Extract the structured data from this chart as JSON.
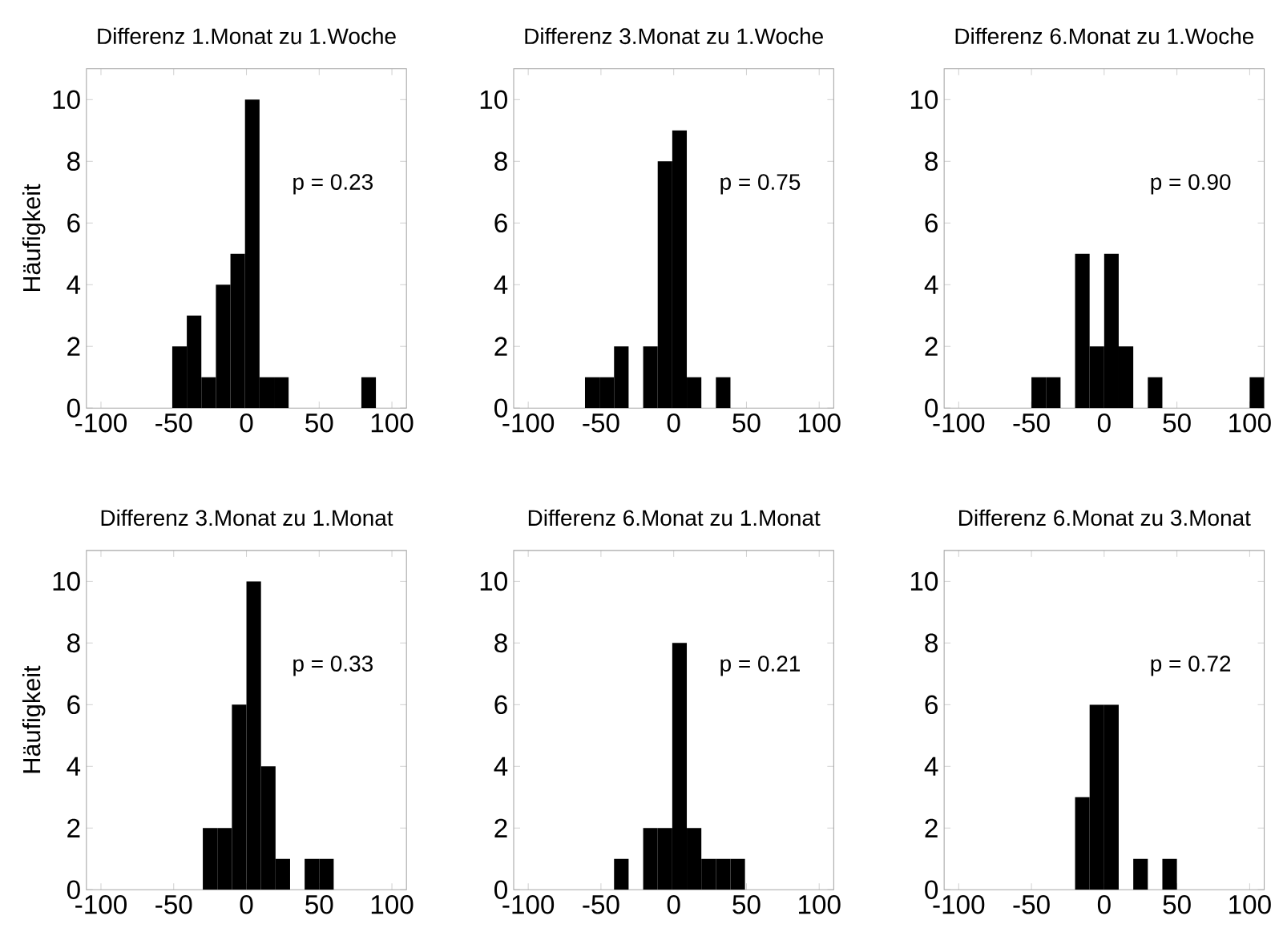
{
  "chart_data": [
    {
      "type": "histogram",
      "title": "Differenz 1.Monat zu 1.Woche",
      "ylabel": "Häufigkeit",
      "bins": [
        -51,
        -41,
        -31,
        -21,
        -11,
        -1,
        9,
        19,
        29,
        39,
        49,
        59,
        69,
        79,
        89
      ],
      "values": [
        2,
        3,
        1,
        4,
        5,
        10,
        1,
        1,
        0,
        0,
        0,
        0,
        0,
        1
      ],
      "color": "#000000",
      "xlim": [
        -110,
        110
      ],
      "ylim": [
        0,
        11
      ],
      "xticks": [
        -100,
        -50,
        0,
        50,
        100
      ],
      "yticks": [
        0,
        2,
        4,
        6,
        8,
        10
      ],
      "annotations": [
        "p = 0.23"
      ]
    },
    {
      "type": "histogram",
      "title": "Differenz 3.Monat zu 1.Woche",
      "bins": [
        -61,
        -51,
        -41,
        -31,
        -21,
        -11,
        -1,
        9,
        19,
        29,
        39
      ],
      "values": [
        1,
        1,
        2,
        0,
        2,
        8,
        9,
        1,
        0,
        1
      ],
      "color": "#000000",
      "xlim": [
        -110,
        110
      ],
      "ylim": [
        0,
        11
      ],
      "xticks": [
        -100,
        -50,
        0,
        50,
        100
      ],
      "yticks": [
        0,
        2,
        4,
        6,
        8,
        10
      ],
      "annotations": [
        "p = 0.75"
      ]
    },
    {
      "type": "histogram",
      "title": "Differenz 6.Monat zu 1.Woche",
      "bins": [
        -50,
        -40,
        -30,
        -20,
        -10,
        0,
        10,
        20,
        30,
        40,
        50,
        60,
        70,
        80,
        90,
        100,
        110
      ],
      "values": [
        1,
        1,
        0,
        5,
        2,
        5,
        2,
        0,
        1,
        0,
        0,
        0,
        0,
        0,
        0,
        1
      ],
      "color": "#000000",
      "xlim": [
        -110,
        110
      ],
      "ylim": [
        0,
        11
      ],
      "xticks": [
        -100,
        -50,
        0,
        50,
        100
      ],
      "yticks": [
        0,
        2,
        4,
        6,
        8,
        10
      ],
      "annotations": [
        "p = 0.90"
      ]
    },
    {
      "type": "histogram",
      "title": "Differenz 3.Monat zu 1.Monat",
      "ylabel": "Häufigkeit",
      "bins": [
        -30,
        -20,
        -10,
        0,
        10,
        20,
        30,
        40,
        50,
        60
      ],
      "values": [
        2,
        2,
        6,
        10,
        4,
        1,
        0,
        1,
        1
      ],
      "color": "#000000",
      "xlim": [
        -110,
        110
      ],
      "ylim": [
        0,
        11
      ],
      "xticks": [
        -100,
        -50,
        0,
        50,
        100
      ],
      "yticks": [
        0,
        2,
        4,
        6,
        8,
        10
      ],
      "annotations": [
        "p = 0.33"
      ]
    },
    {
      "type": "histogram",
      "title": "Differenz 6.Monat zu 1.Monat",
      "bins": [
        -41,
        -31,
        -21,
        -11,
        -1,
        9,
        19,
        29,
        39,
        49
      ],
      "values": [
        1,
        0,
        2,
        2,
        8,
        2,
        1,
        1,
        1
      ],
      "color": "#000000",
      "xlim": [
        -110,
        110
      ],
      "ylim": [
        0,
        11
      ],
      "xticks": [
        -100,
        -50,
        0,
        50,
        100
      ],
      "yticks": [
        0,
        2,
        4,
        6,
        8,
        10
      ],
      "annotations": [
        "p = 0.21"
      ]
    },
    {
      "type": "histogram",
      "title": "Differenz 6.Monat zu 3.Monat",
      "bins": [
        -20,
        -10,
        0,
        10,
        20,
        30,
        40,
        50
      ],
      "values": [
        3,
        6,
        6,
        0,
        1,
        0,
        1
      ],
      "color": "#000000",
      "xlim": [
        -110,
        110
      ],
      "ylim": [
        0,
        11
      ],
      "xticks": [
        -100,
        -50,
        0,
        50,
        100
      ],
      "yticks": [
        0,
        2,
        4,
        6,
        8,
        10
      ],
      "annotations": [
        "p = 0.72"
      ]
    }
  ]
}
